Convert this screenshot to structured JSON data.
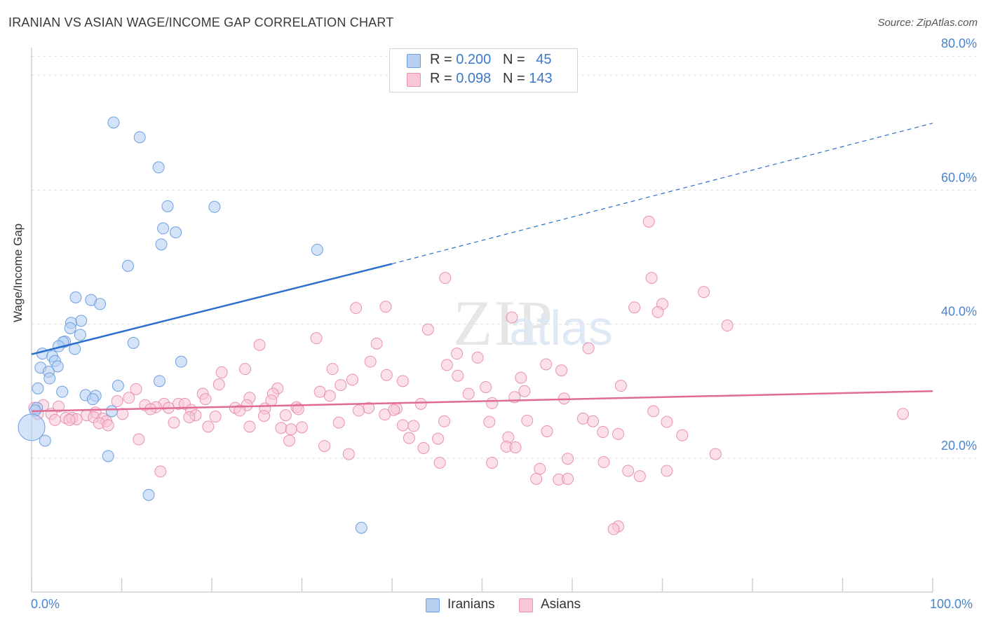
{
  "header": {
    "title": "IRANIAN VS ASIAN WAGE/INCOME GAP CORRELATION CHART",
    "source": "Source: ZipAtlas.com"
  },
  "legend": {
    "iranians": {
      "r_label": "R = ",
      "r_value": "0.200",
      "n_label": "N = ",
      "n_value": "45"
    },
    "asians": {
      "r_label": "R = ",
      "r_value": "0.098",
      "n_label": "N = ",
      "n_value": "143"
    }
  },
  "bottom_legend": {
    "iranians": "Iranians",
    "asians": "Asians"
  },
  "colors": {
    "iranians_fill": "#b7d0f2",
    "iranians_stroke": "#6d9fe0",
    "iranians_line": "#2b6fcc",
    "asians_fill": "#f8c6d6",
    "asians_stroke": "#e991b1",
    "asians_line": "#e16b98",
    "tick_label": "#4a84cc",
    "grid": "#dddddd"
  },
  "chart_data": {
    "type": "scatter",
    "title": "IRANIAN VS ASIAN WAGE/INCOME GAP CORRELATION CHART",
    "xlabel": "",
    "ylabel": "Wage/Income Gap",
    "xlim": [
      0,
      100
    ],
    "ylim": [
      0,
      85
    ],
    "x_tick_labels": [
      "0.0%",
      "100.0%"
    ],
    "y_ticks": [
      20,
      40,
      60,
      80
    ],
    "y_tick_labels": [
      "20.0%",
      "40.0%",
      "60.0%",
      "80.0%"
    ],
    "grid": true,
    "legend_position": "top-center",
    "watermark": "ZIPatlas",
    "series": [
      {
        "name": "Iranians",
        "trend": {
          "x0": 0,
          "y0": 35.5,
          "x1": 40,
          "y1": 49,
          "dashed_to_x": 100,
          "dashed_to_y": 70
        },
        "points": [
          [
            9.1,
            70.1
          ],
          [
            12.0,
            67.9
          ],
          [
            14.1,
            63.4
          ],
          [
            15.1,
            57.6
          ],
          [
            20.3,
            57.5
          ],
          [
            14.6,
            54.3
          ],
          [
            16.0,
            53.7
          ],
          [
            14.4,
            51.9
          ],
          [
            31.7,
            51.1
          ],
          [
            10.7,
            48.7
          ],
          [
            4.9,
            44.0
          ],
          [
            6.6,
            43.6
          ],
          [
            7.6,
            43.0
          ],
          [
            5.5,
            40.5
          ],
          [
            4.4,
            40.2
          ],
          [
            4.3,
            39.4
          ],
          [
            5.4,
            38.4
          ],
          [
            3.7,
            37.4
          ],
          [
            3.5,
            37.3
          ],
          [
            11.3,
            37.2
          ],
          [
            3.0,
            36.7
          ],
          [
            4.8,
            36.3
          ],
          [
            1.2,
            35.6
          ],
          [
            2.3,
            35.2
          ],
          [
            2.6,
            34.5
          ],
          [
            16.6,
            34.4
          ],
          [
            2.9,
            33.7
          ],
          [
            1.0,
            33.5
          ],
          [
            1.9,
            32.9
          ],
          [
            2.0,
            31.9
          ],
          [
            14.2,
            31.5
          ],
          [
            0.7,
            30.4
          ],
          [
            9.6,
            30.8
          ],
          [
            3.4,
            29.9
          ],
          [
            6.0,
            29.4
          ],
          [
            7.1,
            29.3
          ],
          [
            6.8,
            28.8
          ],
          [
            0.6,
            27.5
          ],
          [
            0.4,
            27.1
          ],
          [
            8.9,
            27.0
          ],
          [
            0.0,
            24.6
          ],
          [
            1.5,
            22.6
          ],
          [
            8.5,
            20.3
          ],
          [
            13.0,
            14.5
          ],
          [
            36.6,
            9.6
          ]
        ]
      },
      {
        "name": "Asians",
        "trend": {
          "x0": 0,
          "y0": 27.0,
          "x1": 100,
          "y1": 30.0
        },
        "points": [
          [
            68.5,
            55.3
          ],
          [
            45.9,
            46.9
          ],
          [
            68.8,
            46.9
          ],
          [
            74.6,
            44.8
          ],
          [
            36.0,
            42.4
          ],
          [
            39.3,
            42.6
          ],
          [
            66.9,
            42.5
          ],
          [
            70.0,
            43.0
          ],
          [
            69.5,
            41.8
          ],
          [
            53.3,
            41.0
          ],
          [
            77.2,
            39.8
          ],
          [
            44.0,
            39.2
          ],
          [
            31.6,
            37.9
          ],
          [
            38.3,
            37.1
          ],
          [
            25.3,
            36.9
          ],
          [
            61.8,
            36.4
          ],
          [
            47.2,
            35.6
          ],
          [
            49.5,
            35.0
          ],
          [
            37.6,
            34.4
          ],
          [
            46.1,
            33.9
          ],
          [
            57.1,
            34.0
          ],
          [
            23.7,
            33.3
          ],
          [
            33.4,
            33.3
          ],
          [
            58.8,
            33.1
          ],
          [
            21.1,
            32.8
          ],
          [
            39.4,
            32.4
          ],
          [
            47.3,
            32.3
          ],
          [
            35.6,
            31.7
          ],
          [
            41.2,
            31.5
          ],
          [
            54.3,
            32.0
          ],
          [
            20.8,
            31.0
          ],
          [
            34.3,
            30.9
          ],
          [
            50.4,
            30.6
          ],
          [
            65.4,
            30.8
          ],
          [
            11.6,
            30.3
          ],
          [
            27.3,
            30.4
          ],
          [
            32.0,
            29.9
          ],
          [
            19.0,
            29.6
          ],
          [
            26.8,
            29.6
          ],
          [
            48.5,
            29.6
          ],
          [
            54.7,
            30.0
          ],
          [
            10.8,
            29.0
          ],
          [
            19.3,
            28.8
          ],
          [
            24.2,
            29.0
          ],
          [
            33.1,
            29.3
          ],
          [
            53.6,
            29.1
          ],
          [
            59.1,
            28.9
          ],
          [
            9.5,
            28.5
          ],
          [
            14.7,
            28.1
          ],
          [
            16.3,
            28.1
          ],
          [
            17.0,
            28.1
          ],
          [
            26.6,
            28.6
          ],
          [
            51.1,
            28.2
          ],
          [
            43.2,
            28.1
          ],
          [
            1.3,
            27.9
          ],
          [
            12.6,
            27.9
          ],
          [
            23.9,
            27.9
          ],
          [
            3.0,
            27.7
          ],
          [
            13.8,
            27.6
          ],
          [
            15.2,
            27.5
          ],
          [
            22.6,
            27.5
          ],
          [
            25.9,
            27.4
          ],
          [
            29.4,
            27.6
          ],
          [
            40.5,
            27.4
          ],
          [
            37.4,
            27.5
          ],
          [
            13.2,
            27.3
          ],
          [
            17.7,
            27.2
          ],
          [
            29.6,
            27.3
          ],
          [
            40.2,
            27.2
          ],
          [
            36.3,
            27.1
          ],
          [
            23.1,
            27.1
          ],
          [
            69.0,
            27.0
          ],
          [
            0.7,
            26.6
          ],
          [
            2.2,
            26.6
          ],
          [
            7.1,
            26.8
          ],
          [
            10.1,
            26.6
          ],
          [
            0.3,
            27.5
          ],
          [
            18.2,
            26.4
          ],
          [
            25.8,
            26.3
          ],
          [
            28.2,
            26.4
          ],
          [
            39.2,
            26.5
          ],
          [
            6.1,
            26.4
          ],
          [
            3.8,
            26.0
          ],
          [
            4.5,
            26.0
          ],
          [
            6.9,
            26.1
          ],
          [
            17.5,
            26.1
          ],
          [
            20.4,
            26.2
          ],
          [
            2.6,
            25.7
          ],
          [
            5.0,
            25.8
          ],
          [
            7.9,
            25.9
          ],
          [
            8.3,
            25.5
          ],
          [
            61.2,
            25.9
          ],
          [
            55.0,
            25.6
          ],
          [
            62.3,
            25.5
          ],
          [
            70.5,
            25.4
          ],
          [
            96.7,
            26.6
          ],
          [
            4.2,
            25.7
          ],
          [
            7.5,
            25.2
          ],
          [
            15.8,
            25.3
          ],
          [
            34.1,
            25.3
          ],
          [
            45.8,
            25.5
          ],
          [
            50.8,
            25.4
          ],
          [
            8.5,
            24.9
          ],
          [
            19.6,
            24.7
          ],
          [
            24.2,
            24.7
          ],
          [
            27.7,
            24.5
          ],
          [
            30.0,
            24.6
          ],
          [
            28.8,
            24.3
          ],
          [
            41.2,
            24.9
          ],
          [
            42.4,
            24.8
          ],
          [
            57.2,
            24.0
          ],
          [
            63.4,
            23.9
          ],
          [
            65.1,
            23.6
          ],
          [
            72.2,
            23.4
          ],
          [
            11.9,
            22.8
          ],
          [
            28.6,
            22.6
          ],
          [
            41.9,
            23.0
          ],
          [
            45.1,
            22.9
          ],
          [
            52.9,
            23.1
          ],
          [
            32.5,
            21.8
          ],
          [
            43.5,
            21.5
          ],
          [
            52.7,
            21.7
          ],
          [
            53.7,
            21.6
          ],
          [
            35.2,
            20.6
          ],
          [
            75.9,
            20.6
          ],
          [
            59.5,
            19.9
          ],
          [
            63.5,
            19.4
          ],
          [
            56.4,
            18.4
          ],
          [
            66.2,
            18.1
          ],
          [
            14.3,
            18.0
          ],
          [
            45.3,
            19.3
          ],
          [
            51.1,
            19.3
          ],
          [
            70.5,
            18.1
          ],
          [
            67.5,
            17.3
          ],
          [
            56.0,
            16.9
          ],
          [
            58.5,
            16.8
          ],
          [
            59.5,
            16.9
          ],
          [
            65.1,
            9.8
          ],
          [
            64.6,
            9.4
          ]
        ]
      }
    ]
  }
}
